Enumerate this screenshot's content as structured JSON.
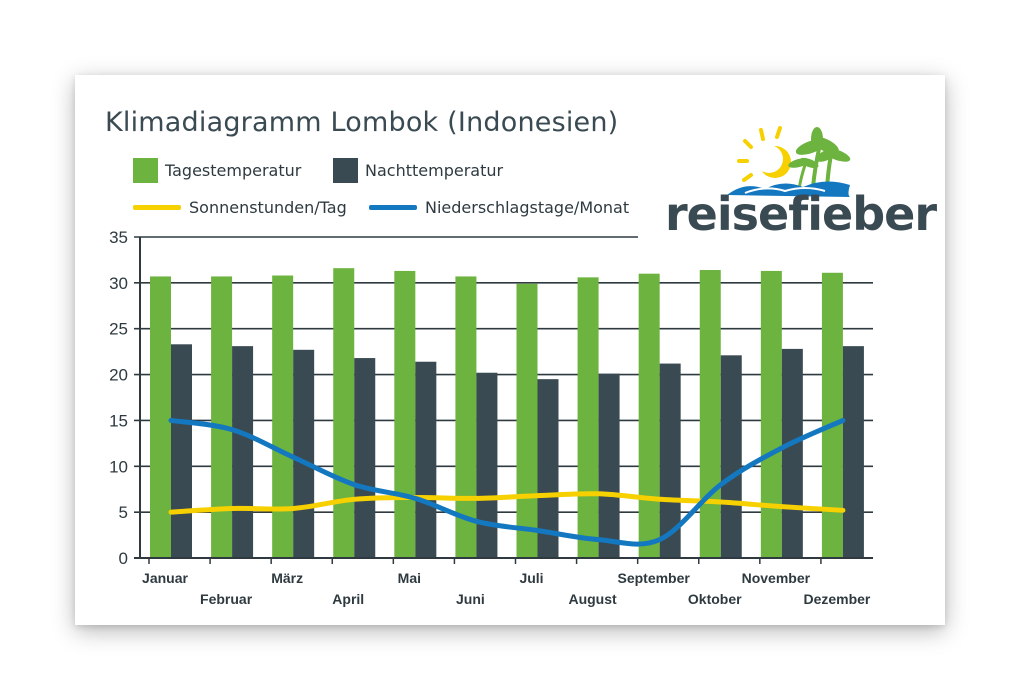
{
  "colors": {
    "day": "#6db33f",
    "night": "#3a4a52",
    "sun": "#f7d000",
    "rain": "#1478c0",
    "axis": "#2e3a40",
    "title": "#3a4a52"
  },
  "logo": {
    "text": "reisefieber",
    "icons": [
      "sun-icon",
      "palm-tree-icon",
      "wave-icon"
    ]
  },
  "chart_data": {
    "type": "bar",
    "title": "Klimadiagramm Lombok (Indonesien)",
    "categories": [
      "Januar",
      "Februar",
      "März",
      "April",
      "Mai",
      "Juni",
      "Juli",
      "August",
      "September",
      "Oktober",
      "November",
      "Dezember"
    ],
    "ylim": [
      0,
      35
    ],
    "yticks": [
      0,
      5,
      10,
      15,
      20,
      25,
      30,
      35
    ],
    "grid": true,
    "series": [
      {
        "name": "Tagestemperatur",
        "kind": "bar",
        "color": "#6db33f",
        "values": [
          30.7,
          30.7,
          30.8,
          31.6,
          31.3,
          30.7,
          29.9,
          30.6,
          31.0,
          31.4,
          31.3,
          31.1
        ]
      },
      {
        "name": "Nachttemperatur",
        "kind": "bar",
        "color": "#3a4a52",
        "values": [
          23.3,
          23.1,
          22.7,
          21.8,
          21.4,
          20.2,
          19.5,
          20.1,
          21.2,
          22.1,
          22.8,
          23.1
        ]
      },
      {
        "name": "Sonnenstunden/Tag",
        "kind": "line",
        "color": "#f7d000",
        "values": [
          5.0,
          5.4,
          5.4,
          6.4,
          6.6,
          6.5,
          6.8,
          7.0,
          6.4,
          6.1,
          5.6,
          5.2
        ]
      },
      {
        "name": "Niederschlagstage/Monat",
        "kind": "line",
        "color": "#1478c0",
        "values": [
          15.0,
          14.0,
          11.0,
          8.0,
          6.5,
          4.0,
          3.0,
          2.0,
          2.0,
          8.0,
          12.0,
          15.0
        ]
      }
    ]
  }
}
